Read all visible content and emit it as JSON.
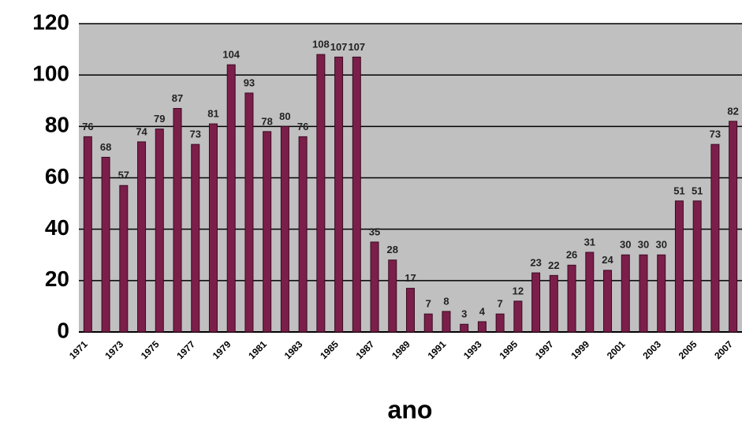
{
  "chart_data": {
    "type": "bar",
    "x_label": "ano",
    "categories": [
      "1971",
      null,
      "1973",
      null,
      "1975",
      null,
      "1977",
      null,
      "1979",
      null,
      "1981",
      null,
      "1983",
      null,
      "1985",
      null,
      "1987",
      null,
      "1989",
      null,
      "1991",
      null,
      "1993",
      null,
      "1995",
      null,
      "1997",
      null,
      "1999",
      null,
      "2001",
      null,
      "2003",
      null,
      "2005",
      null,
      "2007"
    ],
    "values": [
      76,
      68,
      57,
      74,
      79,
      87,
      73,
      81,
      104,
      93,
      78,
      80,
      76,
      108,
      107,
      107,
      35,
      28,
      17,
      7,
      8,
      3,
      4,
      7,
      12,
      23,
      22,
      26,
      31,
      24,
      30,
      30,
      30,
      51,
      51,
      73,
      82
    ],
    "color": "#7b1f4a",
    "ylim": [
      0,
      120
    ],
    "yticks": [
      0,
      20,
      40,
      60,
      80,
      100,
      120
    ],
    "grid": true
  }
}
